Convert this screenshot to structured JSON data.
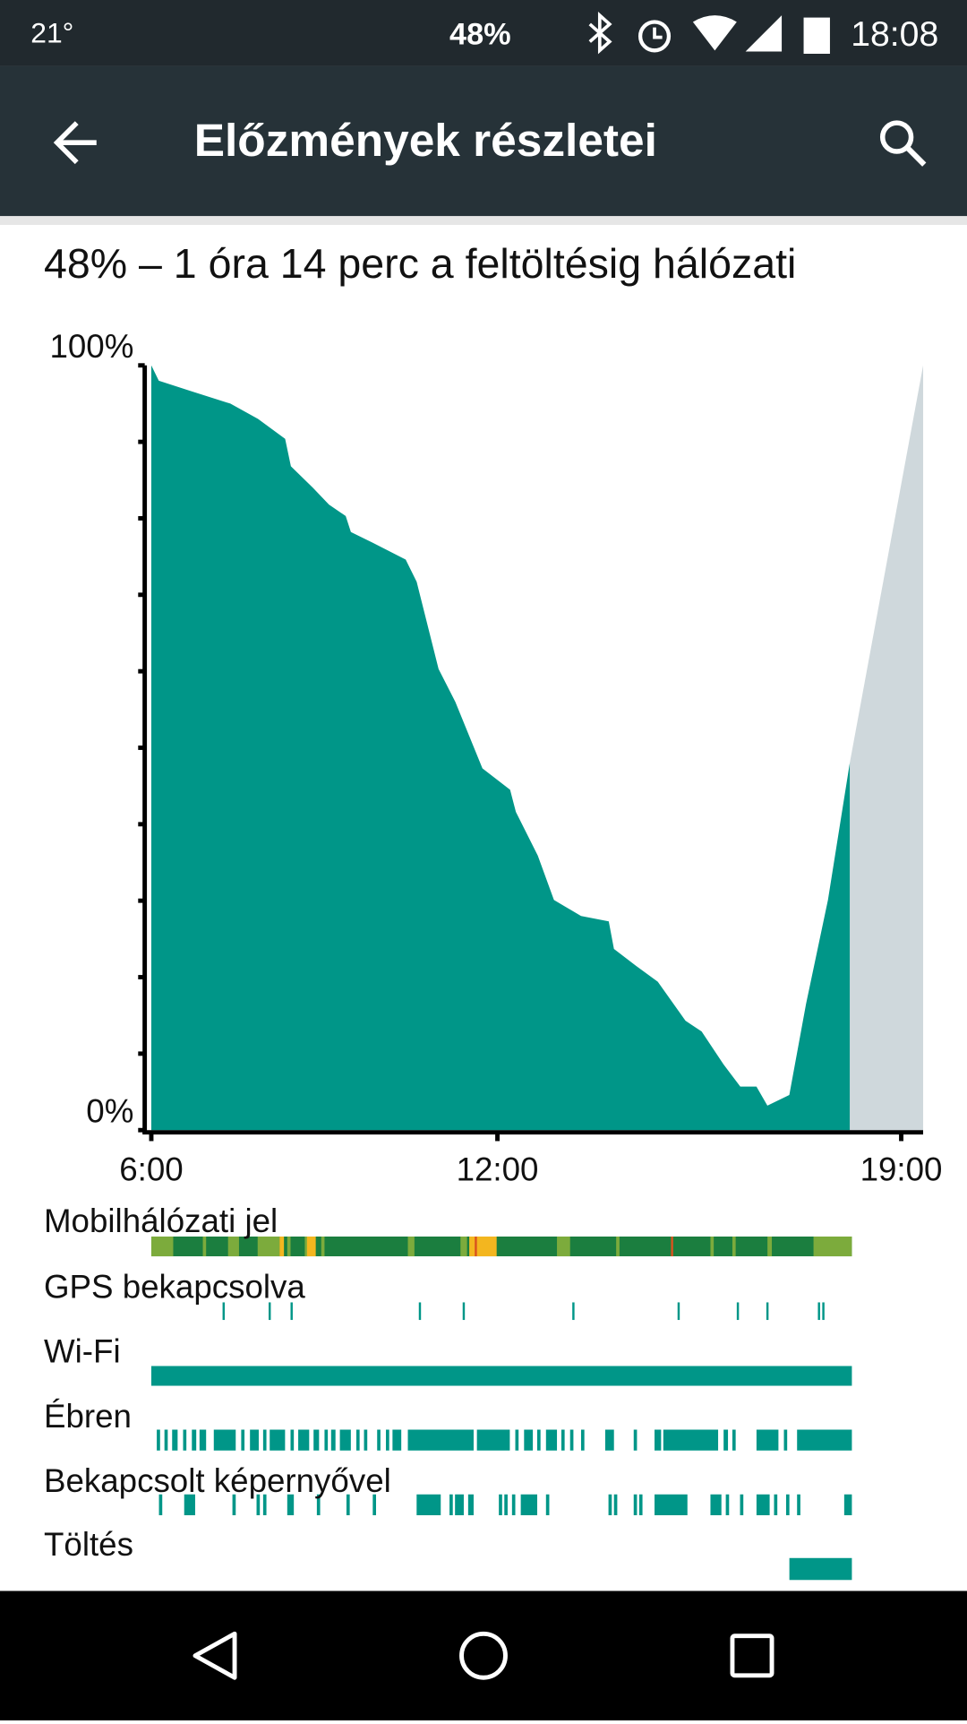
{
  "status_bar": {
    "temperature": "21°",
    "battery": "48%",
    "time": "18:08"
  },
  "app_bar": {
    "title": "Előzmények részletei"
  },
  "summary": "48% – 1 óra 14 perc a feltöltésig hálózati",
  "chart_data": {
    "type": "area",
    "x": [
      6.0,
      6.13,
      6.7,
      7.37,
      7.85,
      8.32,
      8.42,
      8.8,
      9.08,
      9.37,
      9.46,
      9.84,
      10.41,
      10.6,
      10.98,
      11.27,
      11.74,
      12.22,
      12.32,
      12.7,
      12.98,
      13.45,
      13.93,
      14.02,
      14.4,
      14.78,
      15.26,
      15.54,
      15.92,
      16.21,
      16.49,
      16.68,
      17.06,
      17.35,
      17.73,
      18.11
    ],
    "values": [
      100,
      98,
      96.6,
      95,
      93,
      90.4,
      86.8,
      84,
      81.8,
      80.3,
      78.2,
      76.8,
      74.6,
      71.7,
      60.3,
      56,
      47.3,
      44.5,
      41.6,
      35.9,
      30.1,
      28,
      27.3,
      23.7,
      21.5,
      19.4,
      14.3,
      12.9,
      8.6,
      5.7,
      5.7,
      3.2,
      4.6,
      16.5,
      30.1,
      48.1
    ],
    "color": "#009688",
    "projection": {
      "x": [
        18.11,
        19.38
      ],
      "values": [
        48.1,
        100
      ],
      "color": "#cfd8dc"
    },
    "xlim": [
      6,
      19.38
    ],
    "ylim": [
      0,
      100
    ],
    "xticks": [
      {
        "value": 6,
        "label": "6:00"
      },
      {
        "value": 12,
        "label": "12:00"
      },
      {
        "value": 19,
        "label": "19:00"
      }
    ],
    "yticks": [
      {
        "value": 0,
        "label": "0%"
      },
      {
        "value": 100,
        "label": "100%"
      }
    ],
    "minor_yticks": [
      10,
      20,
      30,
      40,
      50,
      60,
      70,
      80,
      90
    ]
  },
  "timeline": {
    "rows": [
      "Mobilhálózati jel",
      "GPS bekapcsolva",
      "Wi-Fi",
      "Ébren",
      "Bekapcsolt képernyővel",
      "Töltés"
    ]
  }
}
